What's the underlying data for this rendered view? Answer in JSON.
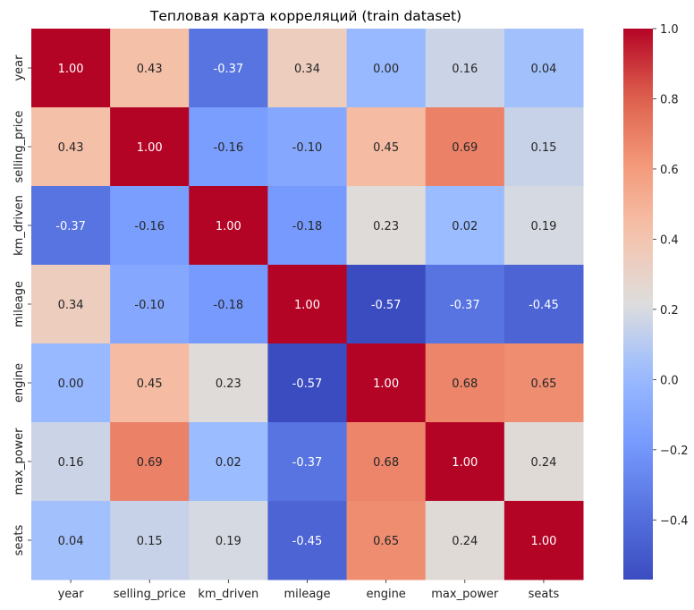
{
  "chart_data": {
    "type": "heatmap",
    "title": "Тепловая карта корреляций (train dataset)",
    "x_categories": [
      "year",
      "selling_price",
      "km_driven",
      "mileage",
      "engine",
      "max_power",
      "seats"
    ],
    "y_categories": [
      "year",
      "selling_price",
      "km_driven",
      "mileage",
      "engine",
      "max_power",
      "seats"
    ],
    "values": [
      [
        1.0,
        0.43,
        -0.37,
        0.34,
        0.0,
        0.16,
        0.04
      ],
      [
        0.43,
        1.0,
        -0.16,
        -0.1,
        0.45,
        0.69,
        0.15
      ],
      [
        -0.37,
        -0.16,
        1.0,
        -0.18,
        0.23,
        0.02,
        0.19
      ],
      [
        0.34,
        -0.1,
        -0.18,
        1.0,
        -0.57,
        -0.37,
        -0.45
      ],
      [
        0.0,
        0.45,
        0.23,
        -0.57,
        1.0,
        0.68,
        0.65
      ],
      [
        0.16,
        0.69,
        0.02,
        -0.37,
        0.68,
        1.0,
        0.24
      ],
      [
        0.04,
        0.15,
        0.19,
        -0.45,
        0.65,
        0.24,
        1.0
      ]
    ],
    "value_format": "0.00",
    "colormap": "coolwarm",
    "colorbar": {
      "vmin": -0.57,
      "vmax": 1.0,
      "ticks": [
        1.0,
        0.8,
        0.6,
        0.4,
        0.2,
        0.0,
        -0.2,
        -0.4
      ],
      "tick_labels": [
        "1.0",
        "0.8",
        "0.6",
        "0.4",
        "0.2",
        "0.0",
        "−0.2",
        "−0.4"
      ]
    }
  }
}
